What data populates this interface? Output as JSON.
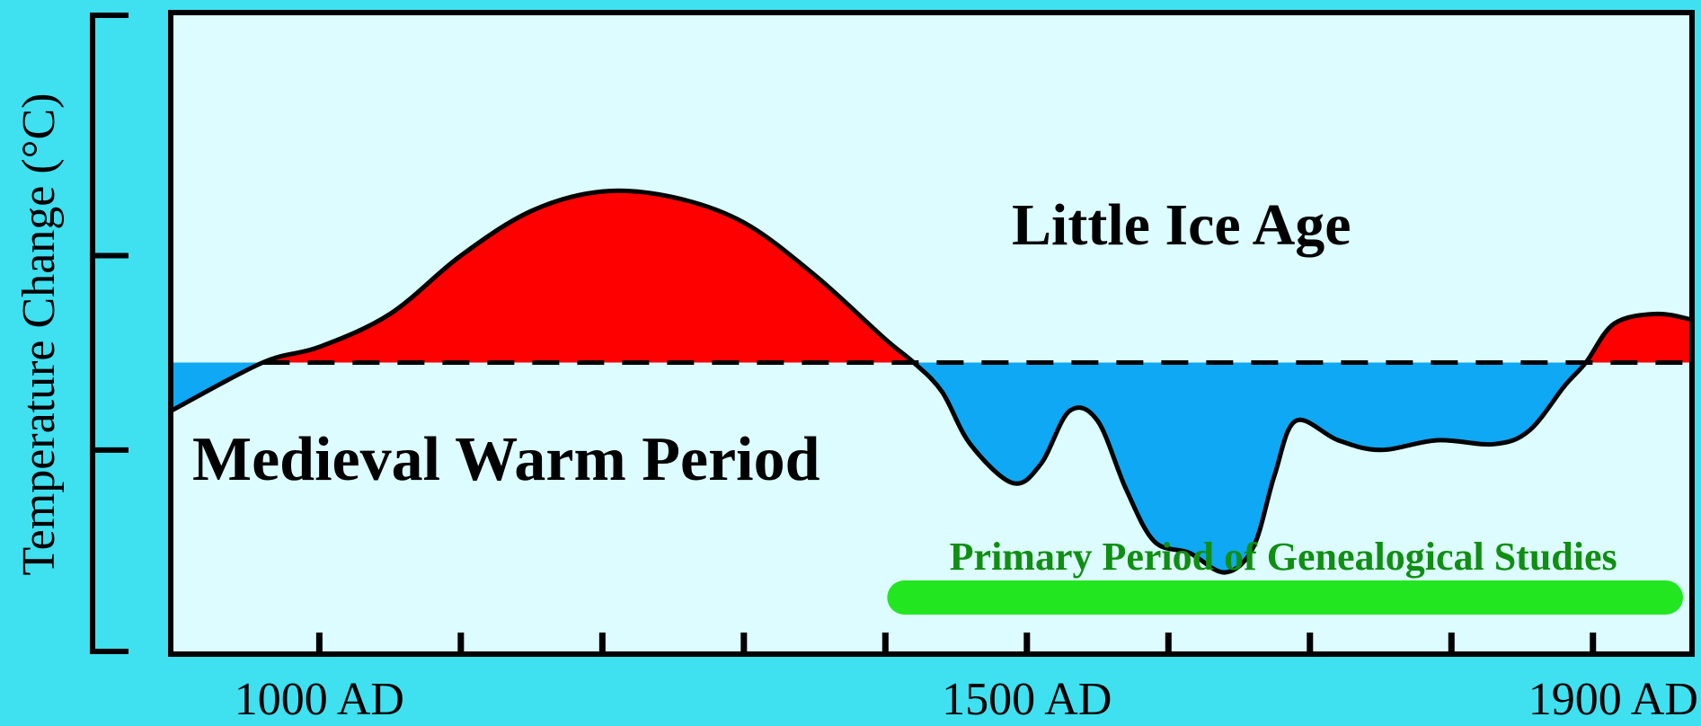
{
  "chart_data": {
    "type": "area",
    "ylabel": "Temperature Change (°C)",
    "xlabel": "",
    "x_tick_labels": [
      {
        "x": 1000,
        "label": "1000 AD"
      },
      {
        "x": 1500,
        "label": "1500 AD"
      },
      {
        "x": 1900,
        "label": "1900 AD"
      }
    ],
    "x_minor_ticks": [
      1000,
      1100,
      1200,
      1300,
      1400,
      1500,
      1600,
      1700,
      1800,
      1900
    ],
    "xlim": [
      895,
      1970
    ],
    "ylim": [
      -1.5,
      1.8
    ],
    "baseline": 0,
    "series": [
      {
        "points": [
          [
            895,
            -0.25
          ],
          [
            960,
            0.0
          ],
          [
            1000,
            0.08
          ],
          [
            1050,
            0.25
          ],
          [
            1100,
            0.55
          ],
          [
            1150,
            0.78
          ],
          [
            1200,
            0.88
          ],
          [
            1250,
            0.85
          ],
          [
            1300,
            0.72
          ],
          [
            1350,
            0.45
          ],
          [
            1400,
            0.12
          ],
          [
            1420,
            0.0
          ],
          [
            1440,
            -0.15
          ],
          [
            1460,
            -0.42
          ],
          [
            1490,
            -0.62
          ],
          [
            1510,
            -0.52
          ],
          [
            1530,
            -0.25
          ],
          [
            1550,
            -0.3
          ],
          [
            1570,
            -0.65
          ],
          [
            1590,
            -0.92
          ],
          [
            1615,
            -0.98
          ],
          [
            1640,
            -1.08
          ],
          [
            1660,
            -0.95
          ],
          [
            1675,
            -0.58
          ],
          [
            1690,
            -0.3
          ],
          [
            1720,
            -0.4
          ],
          [
            1750,
            -0.45
          ],
          [
            1790,
            -0.4
          ],
          [
            1830,
            -0.42
          ],
          [
            1855,
            -0.35
          ],
          [
            1880,
            -0.12
          ],
          [
            1895,
            0.0
          ],
          [
            1915,
            0.2
          ],
          [
            1945,
            0.25
          ],
          [
            1970,
            0.22
          ]
        ]
      }
    ],
    "annotations": {
      "warm_label": "Medieval Warm Period",
      "cold_label": "Little Ice Age",
      "band_label": "Primary Period of Genealogical Studies",
      "band_range": [
        1400,
        1970
      ]
    },
    "colors": {
      "background": "#3fe0f0",
      "plot_background": "#dcfcff",
      "warm_fill": "#ff0000",
      "cold_fill": "#0ea8f5",
      "band": "#22e620",
      "band_text": "#0f8f12",
      "line": "#000000"
    },
    "grid": false,
    "legend": "none"
  }
}
